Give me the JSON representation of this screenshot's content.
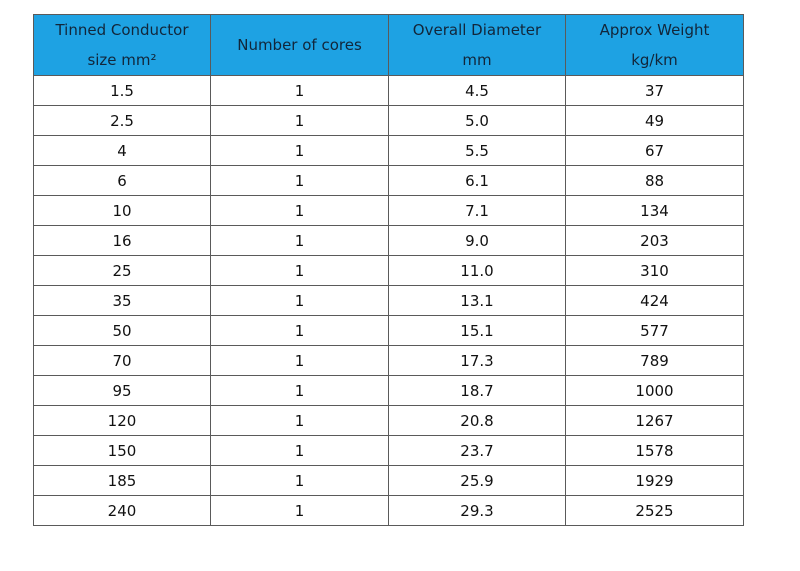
{
  "table": {
    "headers": [
      {
        "line1": "Tinned Conductor",
        "line2": "size mm²"
      },
      {
        "line1": "Number of cores"
      },
      {
        "line1": "Overall Diameter",
        "line2": "mm"
      },
      {
        "line1": "Approx Weight",
        "line2": "kg/km"
      }
    ],
    "rows": [
      [
        "1.5",
        "1",
        "4.5",
        "37"
      ],
      [
        "2.5",
        "1",
        "5.0",
        "49"
      ],
      [
        "4",
        "1",
        "5.5",
        "67"
      ],
      [
        "6",
        "1",
        "6.1",
        "88"
      ],
      [
        "10",
        "1",
        "7.1",
        "134"
      ],
      [
        "16",
        "1",
        "9.0",
        "203"
      ],
      [
        "25",
        "1",
        "11.0",
        "310"
      ],
      [
        "35",
        "1",
        "13.1",
        "424"
      ],
      [
        "50",
        "1",
        "15.1",
        "577"
      ],
      [
        "70",
        "1",
        "17.3",
        "789"
      ],
      [
        "95",
        "1",
        "18.7",
        "1000"
      ],
      [
        "120",
        "1",
        "20.8",
        "1267"
      ],
      [
        "150",
        "1",
        "23.7",
        "1578"
      ],
      [
        "185",
        "1",
        "25.9",
        "1929"
      ],
      [
        "240",
        "1",
        "29.3",
        "2525"
      ]
    ]
  }
}
